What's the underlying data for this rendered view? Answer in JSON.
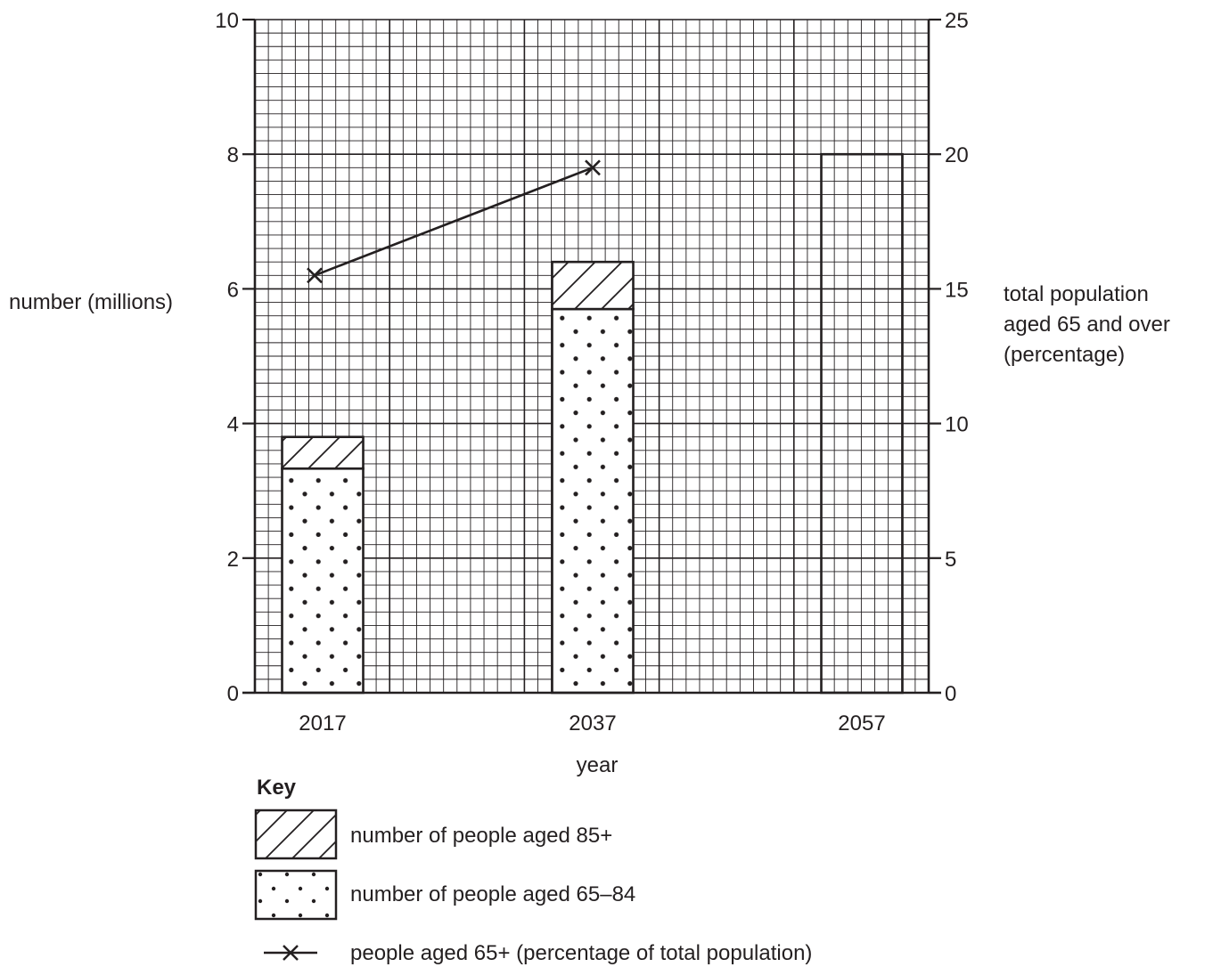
{
  "chart_data": {
    "type": "bar",
    "categories": [
      "2017",
      "2037",
      "2057"
    ],
    "series": [
      {
        "name": "number of people aged 65–84",
        "axis": "left",
        "values": [
          3.33,
          5.7,
          null
        ]
      },
      {
        "name": "number of people aged 85+",
        "axis": "left",
        "values": [
          0.47,
          0.7,
          null
        ]
      },
      {
        "name": "people aged 65+ (percentage of total population)",
        "axis": "right",
        "type": "line",
        "values": [
          15.5,
          19.5,
          null
        ]
      }
    ],
    "bar_totals": [
      3.8,
      6.4,
      8.0
    ],
    "unshaded_bar": {
      "category": "2057",
      "value": 8.0
    },
    "xlabel": "year",
    "ylabel_left": "number (millions)",
    "ylabel_right": [
      "total population",
      "aged 65 and over",
      "(percentage)"
    ],
    "ylim_left": [
      0,
      10
    ],
    "ylim_right": [
      0,
      25
    ],
    "yticks_left": [
      "0",
      "2",
      "4",
      "6",
      "8",
      "10"
    ],
    "yticks_right": [
      "0",
      "5",
      "10",
      "15",
      "20",
      "25"
    ],
    "grid": true,
    "legend": {
      "title": "Key",
      "placement": "bottom",
      "entries": [
        {
          "pattern": "hatch",
          "label": "number of people aged 85+"
        },
        {
          "pattern": "dots",
          "label": "number of people aged 65–84"
        },
        {
          "pattern": "line-cross",
          "label": "people aged 65+ (percentage of total population)"
        }
      ]
    },
    "colors": {
      "ink": "#231f20",
      "background": "#ffffff"
    }
  }
}
